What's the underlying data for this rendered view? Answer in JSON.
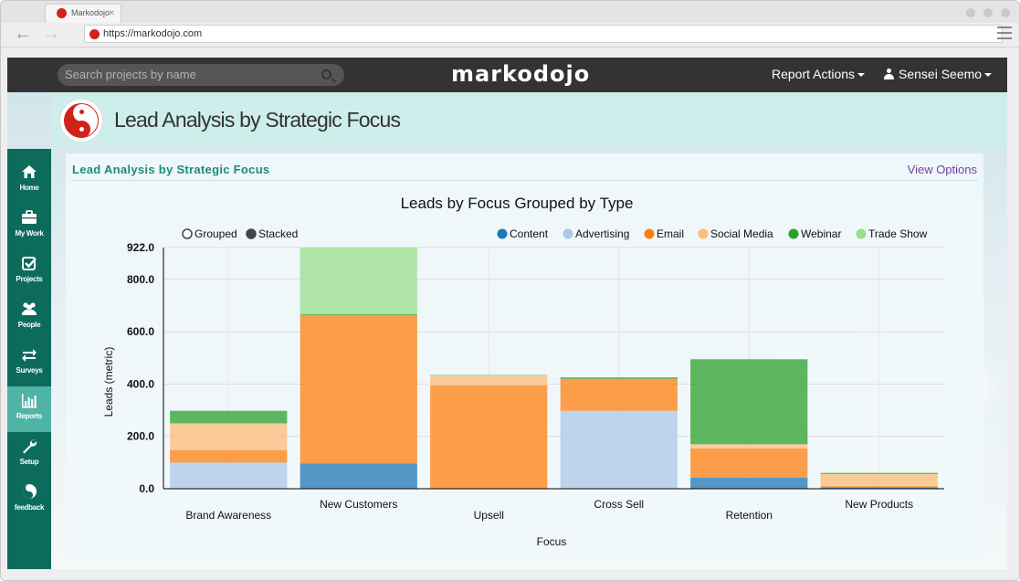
{
  "browser": {
    "tab_title": "Markodojo",
    "tab_close": "✕",
    "url": "https://markodojo.com"
  },
  "app": {
    "search_placeholder": "Search projects by name",
    "logo": "markodojo",
    "report_actions": "Report Actions",
    "user_name": "Sensei Seemo"
  },
  "sidebar": {
    "items": [
      {
        "label": "Home",
        "icon": "home-icon"
      },
      {
        "label": "My Work",
        "icon": "briefcase-icon"
      },
      {
        "label": "Projects",
        "icon": "checkbox-icon"
      },
      {
        "label": "People",
        "icon": "people-icon"
      },
      {
        "label": "Surveys",
        "icon": "exchange-icon"
      },
      {
        "label": "Reports",
        "icon": "bar-chart-icon",
        "active": true
      },
      {
        "label": "Setup",
        "icon": "wrench-icon"
      },
      {
        "label": "feedback",
        "icon": "yin-yang-icon"
      }
    ]
  },
  "page": {
    "title": "Lead Analysis by Strategic Focus",
    "panel_title": "Lead Analysis by Strategic Focus",
    "view_options": "View Options"
  },
  "chart_data": {
    "type": "bar",
    "stacked": true,
    "title": "Leads by Focus Grouped by Type",
    "xlabel": "Focus",
    "ylabel": "Leads (metric)",
    "ylim": [
      0,
      922
    ],
    "yticks": [
      "0.0",
      "200.0",
      "400.0",
      "600.0",
      "800.0",
      "922.0"
    ],
    "ytick_values": [
      0,
      200,
      400,
      600,
      800,
      922
    ],
    "mode_options": [
      "Grouped",
      "Stacked"
    ],
    "selected_mode": "Stacked",
    "categories": [
      "Brand Awareness",
      "New Customers",
      "Upsell",
      "Cross Sell",
      "Retention",
      "New Products"
    ],
    "series": [
      {
        "name": "Content",
        "color": "#1f77b4",
        "values": [
          0,
          96,
          0,
          0,
          42,
          6
        ]
      },
      {
        "name": "Advertising",
        "color": "#aec7e8",
        "values": [
          100,
          0,
          0,
          298,
          0,
          0
        ]
      },
      {
        "name": "Email",
        "color": "#ff7f0e",
        "values": [
          48,
          568,
          395,
          122,
          112,
          4
        ]
      },
      {
        "name": "Social Media",
        "color": "#ffbb78",
        "values": [
          102,
          0,
          36,
          0,
          16,
          46
        ]
      },
      {
        "name": "Webinar",
        "color": "#2ca02c",
        "values": [
          48,
          4,
          0,
          6,
          325,
          4
        ]
      },
      {
        "name": "Trade Show",
        "color": "#98df8a",
        "values": [
          0,
          254,
          6,
          0,
          0,
          2
        ]
      }
    ]
  }
}
